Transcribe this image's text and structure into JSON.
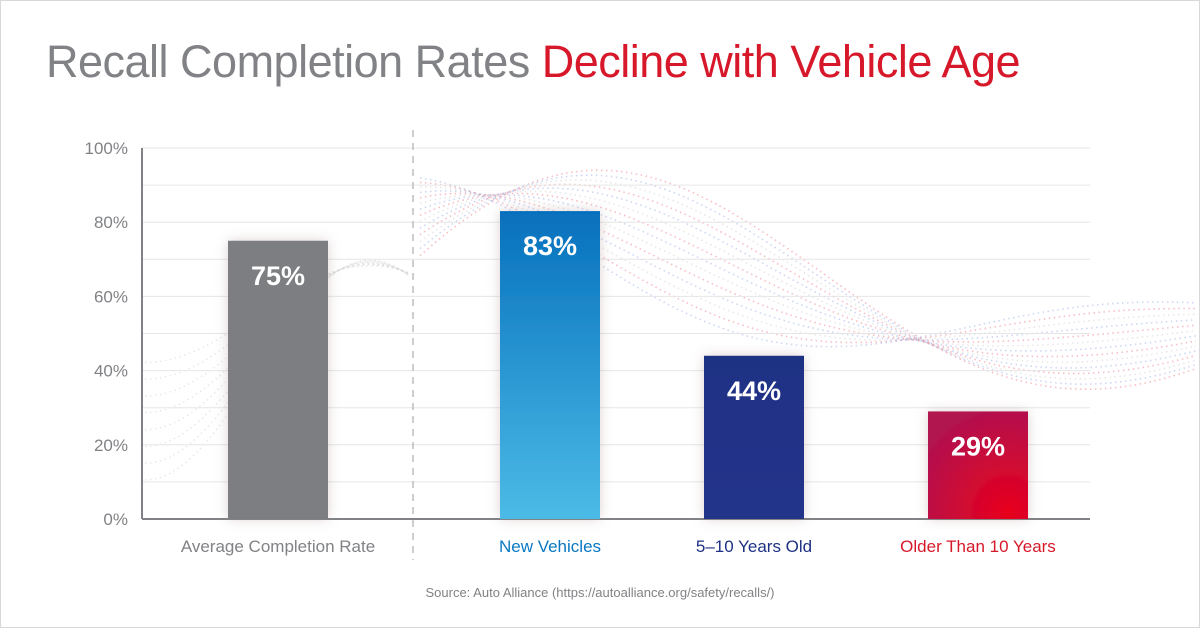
{
  "title": {
    "part1": "Recall Completion Rates ",
    "part2": "Decline with Vehicle Age"
  },
  "source": "Source: Auto Alliance (https://autoalliance.org/safety/recalls/)",
  "colors": {
    "title_gray": "#808285",
    "title_highlight": "#d7182a",
    "average": "#7c7e82",
    "new": "#0a78c2",
    "mid": "#1f3184",
    "old": "#c2124a"
  },
  "chart_data": {
    "type": "bar",
    "categories": [
      "Average Completion Rate",
      "New Vehicles",
      "5–10 Years Old",
      "Older Than 10 Years"
    ],
    "values": [
      75,
      83,
      44,
      29
    ],
    "data_labels": [
      "75%",
      "83%",
      "44%",
      "29%"
    ],
    "label_colors": [
      "#808285",
      "#0a78c2",
      "#1f3184",
      "#d7182a"
    ],
    "ylim": [
      0,
      100
    ],
    "yticks": [
      0,
      20,
      40,
      60,
      80,
      100
    ],
    "ytick_labels": [
      "0%",
      "20%",
      "40%",
      "60%",
      "80%",
      "100%"
    ],
    "grid": true,
    "xlabel": "",
    "ylabel": ""
  }
}
